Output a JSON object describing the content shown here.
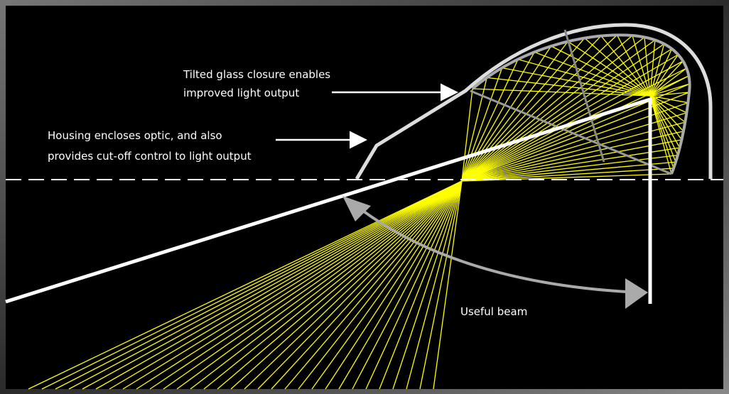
{
  "annotations": [
    {
      "lines": [
        "Tilted glass closure enables",
        "improved light output"
      ]
    },
    {
      "lines": [
        "Housing encloses optic, and also",
        "provides cut-off control to light output"
      ]
    },
    {
      "lines": [
        "Useful beam"
      ]
    }
  ]
}
